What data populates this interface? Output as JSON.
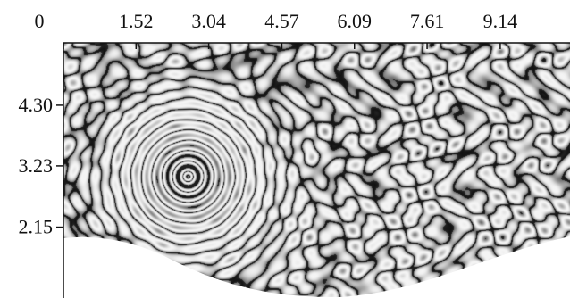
{
  "chart_data": {
    "type": "heatmap",
    "title": "",
    "xlabel": "",
    "ylabel": "",
    "x_ticks": [
      {
        "value": 0,
        "label": "0"
      },
      {
        "value": 1.52,
        "label": "1.52"
      },
      {
        "value": 3.04,
        "label": "3.04"
      },
      {
        "value": 4.57,
        "label": "4.57"
      },
      {
        "value": 6.09,
        "label": "6.09"
      },
      {
        "value": 7.61,
        "label": "7.61"
      },
      {
        "value": 9.14,
        "label": "9.14"
      }
    ],
    "y_ticks": [
      {
        "value": 4.3,
        "label": "4.30"
      },
      {
        "value": 3.23,
        "label": "3.23"
      },
      {
        "value": 2.15,
        "label": "2.15"
      }
    ],
    "xlim": [
      0,
      10.6
    ],
    "ylim": [
      0.9,
      5.4
    ],
    "colormap": "grayscale",
    "features": {
      "ring_pattern_center": {
        "x": 2.6,
        "y": 3.05
      },
      "lower_boundary": "curved"
    },
    "colors": {
      "background": "#ffffff",
      "axis": "#111111",
      "dark": "#161616",
      "light": "#f4f4f4"
    }
  }
}
